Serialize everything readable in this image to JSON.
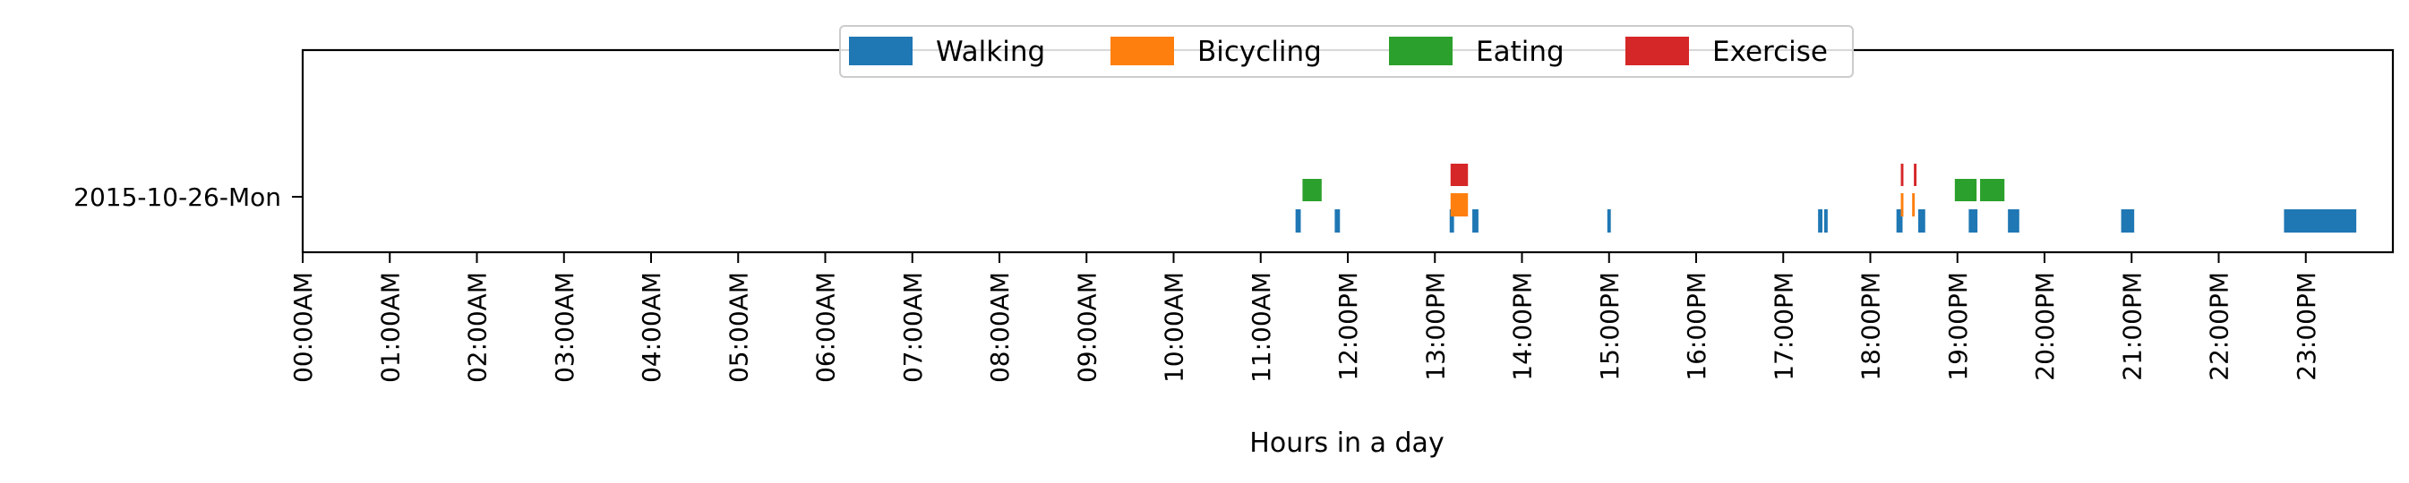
{
  "chart_data": {
    "type": "bar",
    "orientation": "horizontal-timeline",
    "xlabel": "Hours in a day",
    "ylabel": "",
    "xlim": [
      0,
      24
    ],
    "x_ticks": [
      "00:00AM",
      "01:00AM",
      "02:00AM",
      "03:00AM",
      "04:00AM",
      "05:00AM",
      "06:00AM",
      "07:00AM",
      "08:00AM",
      "09:00AM",
      "10:00AM",
      "11:00AM",
      "12:00PM",
      "13:00PM",
      "14:00PM",
      "15:00PM",
      "16:00PM",
      "17:00PM",
      "18:00PM",
      "19:00PM",
      "20:00PM",
      "21:00PM",
      "22:00PM",
      "23:00PM"
    ],
    "y_categories": [
      "2015-10-26-Mon"
    ],
    "legend_position": "top-center",
    "grid": false,
    "series": [
      {
        "name": "Walking",
        "color": "#1f77b4",
        "intervals": [
          [
            11.4,
            11.46
          ],
          [
            11.85,
            11.91
          ],
          [
            13.17,
            13.22
          ],
          [
            13.43,
            13.5
          ],
          [
            14.98,
            15.02
          ],
          [
            17.4,
            17.45
          ],
          [
            17.47,
            17.51
          ],
          [
            18.3,
            18.37
          ],
          [
            18.55,
            18.63
          ],
          [
            19.13,
            19.23
          ],
          [
            19.58,
            19.71
          ],
          [
            20.88,
            21.03
          ],
          [
            22.75,
            23.58
          ]
        ]
      },
      {
        "name": "Bicycling",
        "color": "#ff7f0e",
        "intervals": [
          [
            13.18,
            13.38
          ],
          [
            18.35,
            18.38
          ],
          [
            18.48,
            18.51
          ]
        ]
      },
      {
        "name": "Eating",
        "color": "#2ca02c",
        "intervals": [
          [
            11.48,
            11.7
          ],
          [
            18.97,
            19.22
          ],
          [
            19.26,
            19.54
          ]
        ]
      },
      {
        "name": "Exercise",
        "color": "#d62728",
        "intervals": [
          [
            13.18,
            13.38
          ],
          [
            18.35,
            18.38
          ],
          [
            18.5,
            18.53
          ]
        ]
      }
    ]
  }
}
